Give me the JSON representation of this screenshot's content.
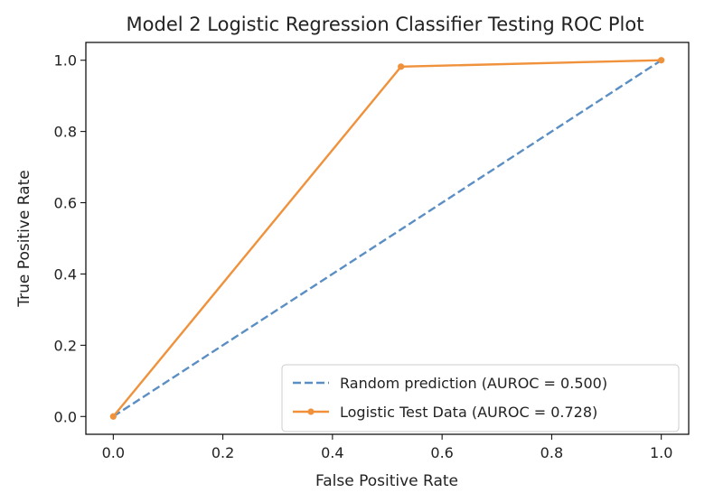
{
  "chart_data": {
    "type": "line",
    "title": "Model 2 Logistic Regression Classifier Testing ROC Plot",
    "xlabel": "False Positive Rate",
    "ylabel": "True Positive Rate",
    "xlim": [
      -0.05,
      1.05
    ],
    "ylim": [
      -0.05,
      1.05
    ],
    "xticks": [
      0.0,
      0.2,
      0.4,
      0.6,
      0.8,
      1.0
    ],
    "yticks": [
      0.0,
      0.2,
      0.4,
      0.6,
      0.8,
      1.0
    ],
    "xtick_labels": [
      "0.0",
      "0.2",
      "0.4",
      "0.6",
      "0.8",
      "1.0"
    ],
    "ytick_labels": [
      "0.0",
      "0.2",
      "0.4",
      "0.6",
      "0.8",
      "1.0"
    ],
    "grid": false,
    "legend_position": "lower-right",
    "series": [
      {
        "name": "Random prediction (AUROC = 0.500)",
        "color": "#5b8fc4",
        "linestyle": "dashed",
        "marker": "none",
        "x": [
          0.0,
          1.0
        ],
        "y": [
          0.0,
          1.0
        ]
      },
      {
        "name": "Logistic Test Data (AUROC = 0.728)",
        "color": "#f0913b",
        "linestyle": "solid",
        "marker": "point",
        "x": [
          0.0,
          0.525,
          1.0
        ],
        "y": [
          0.0,
          0.982,
          1.0
        ]
      }
    ]
  }
}
